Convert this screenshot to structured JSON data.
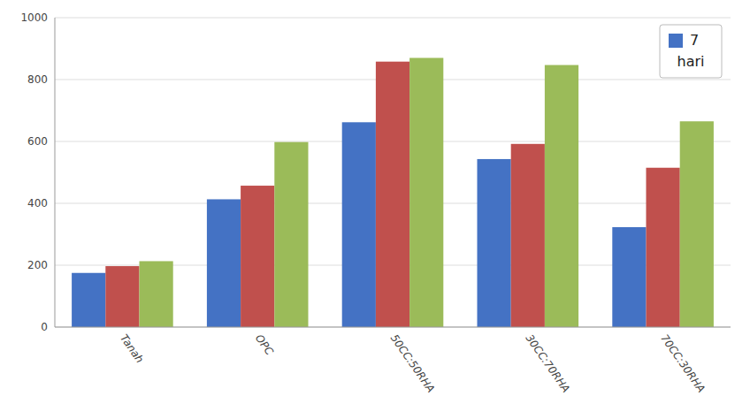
{
  "chart_data": {
    "type": "bar",
    "categories": [
      "Tanah",
      "OPC",
      "50CC:50RHA",
      "30CC:70RHA",
      "70CC:30RHA"
    ],
    "series": [
      {
        "name": "7",
        "color": "#4472C4",
        "values": [
          175,
          413,
          662,
          543,
          323
        ]
      },
      {
        "color": "#C0504D",
        "values": [
          197,
          457,
          858,
          592,
          515
        ]
      },
      {
        "color": "#9BBB59",
        "values": [
          213,
          598,
          870,
          847,
          665
        ]
      }
    ],
    "ylim": [
      0,
      1000
    ],
    "yticks": [
      0,
      200,
      400,
      600,
      800,
      1000
    ],
    "grid": true,
    "legend": "upper right",
    "annotations": [
      "hari"
    ]
  }
}
